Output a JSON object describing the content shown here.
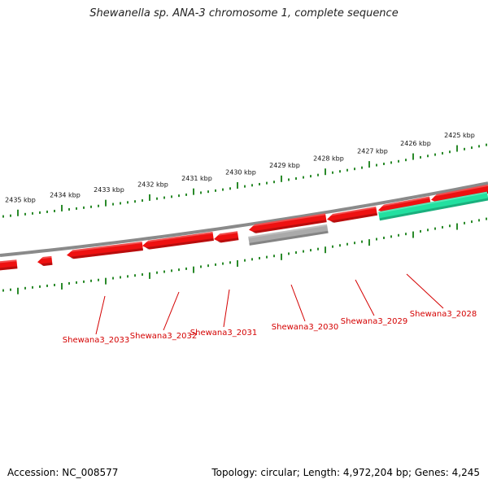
{
  "title": "Shewanella sp. ANA-3 chromosome 1, complete sequence",
  "footer": {
    "accession": "Accession: NC_008577",
    "topology": "Topology: circular; Length: 4,972,204 bp; Genes: 4,245"
  },
  "colors": {
    "forward_gene": "#ee1111",
    "reverse_gene": "#ee1111",
    "rna_gene": "#22e0a0",
    "pseudo_gene": "#aaaaaa",
    "backbone": "#8a8a8a",
    "ticks": "#2a8a2a",
    "label": "#d40000"
  },
  "scale": {
    "unit": "kbp",
    "labels": [
      "2435 kbp",
      "2434 kbp",
      "2433 kbp",
      "2432 kbp",
      "2431 kbp",
      "2430 kbp",
      "2429 kbp",
      "2428 kbp",
      "2427 kbp",
      "2426 kbp",
      "2425 kbp"
    ]
  },
  "genes": [
    {
      "name": "Shewana3_2033"
    },
    {
      "name": "Shewana3_2032"
    },
    {
      "name": "Shewana3_2031"
    },
    {
      "name": "Shewana3_2030"
    },
    {
      "name": "Shewana3_2029"
    },
    {
      "name": "Shewana3_2028"
    }
  ]
}
